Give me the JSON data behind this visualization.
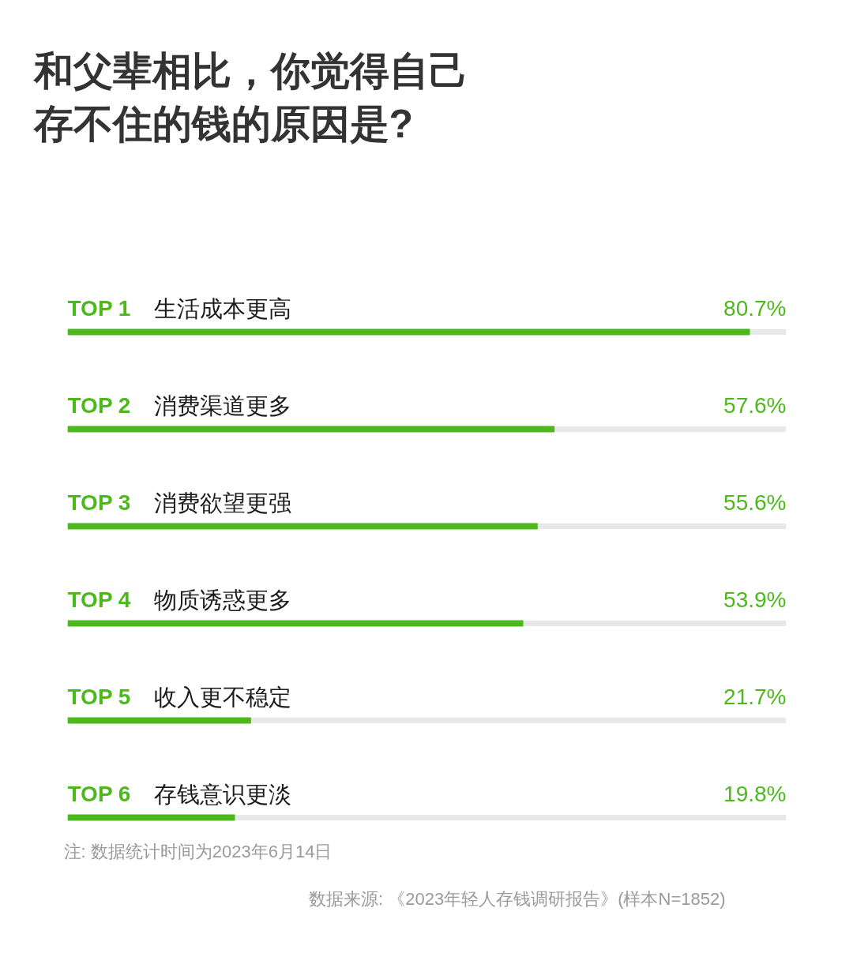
{
  "chart_data": {
    "type": "bar",
    "orientation": "horizontal",
    "title": "和父辈相比，你觉得自己存不住的钱的原因是?",
    "categories": [
      "生活成本更高",
      "消费渠道更多",
      "消费欲望更强",
      "物质诱惑更多",
      "收入更不稳定",
      "存钱意识更淡"
    ],
    "values": [
      80.7,
      57.6,
      55.6,
      53.9,
      21.7,
      19.8
    ],
    "value_labels": [
      "80.7%",
      "57.6%",
      "55.6%",
      "53.9%",
      "21.7%",
      "19.8%"
    ],
    "color": "#4cb81c",
    "xlim": [
      0,
      85
    ],
    "tick_labels": false,
    "annotations": [
      "TOP 1",
      "TOP 2",
      "TOP 3",
      "TOP 4",
      "TOP 5",
      "TOP 6",
      "注: 数据统计时间为2023年6月14日",
      "数据来源: 《2023年轻人存钱调研报告》(样本N=1852)"
    ]
  }
}
